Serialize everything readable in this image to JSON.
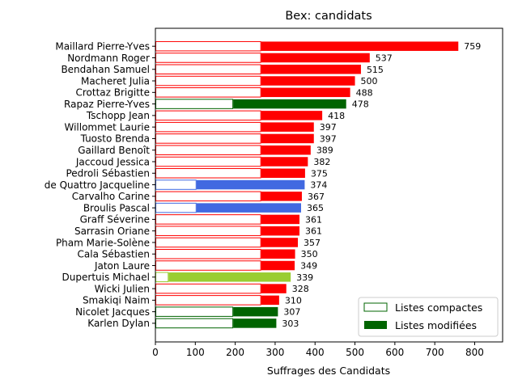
{
  "chart_data": {
    "type": "bar",
    "orientation": "horizontal",
    "title": "Bex: candidats",
    "xlabel": "Suffrages des Candidats",
    "ylabel": "",
    "xlim": [
      0,
      870
    ],
    "xticks": [
      0,
      100,
      200,
      300,
      400,
      500,
      600,
      700,
      800
    ],
    "grid": false,
    "legend_position": "lower-right",
    "legend": [
      {
        "label": "Listes compactes",
        "style": "outline",
        "color": "#006400"
      },
      {
        "label": "Listes modifiées",
        "style": "filled",
        "color": "#006400"
      }
    ],
    "categories": [
      "Maillard Pierre-Yves",
      "Nordmann Roger",
      "Bendahan Samuel",
      "Macheret Julia",
      "Crottaz Brigitte",
      "Rapaz Pierre-Yves",
      "Tschopp Jean",
      "Willommet Laurie",
      "Tuosto Brenda",
      "Gaillard Benoît",
      "Jaccoud Jessica",
      "Pedroli Sébastien",
      "de Quattro Jacqueline",
      "Carvalho Carine",
      "Broulis Pascal",
      "Graff Séverine",
      "Sarrasin Oriane",
      "Pham Marie-Solène",
      "Cala Sébastien",
      "Jaton Laure",
      "Dupertuis Michael",
      "Wicki Julien",
      "Smakiqi Naim",
      "Nicolet Jacques",
      "Karlen Dylan"
    ],
    "series": [
      {
        "name": "Listes compactes",
        "values": [
          265,
          265,
          265,
          265,
          265,
          195,
          265,
          265,
          265,
          265,
          265,
          265,
          103,
          265,
          103,
          265,
          265,
          265,
          265,
          265,
          33,
          265,
          265,
          195,
          195
        ]
      },
      {
        "name": "Listes modifiées",
        "values": [
          494,
          272,
          250,
          235,
          223,
          283,
          153,
          132,
          132,
          124,
          117,
          110,
          271,
          102,
          262,
          96,
          96,
          92,
          85,
          84,
          306,
          63,
          45,
          112,
          108
        ]
      }
    ],
    "totals": [
      759,
      537,
      515,
      500,
      488,
      478,
      418,
      397,
      397,
      389,
      382,
      375,
      374,
      367,
      365,
      361,
      361,
      357,
      350,
      349,
      339,
      328,
      310,
      307,
      303
    ],
    "bar_colors": [
      "#ff0000",
      "#ff0000",
      "#ff0000",
      "#ff0000",
      "#ff0000",
      "#006400",
      "#ff0000",
      "#ff0000",
      "#ff0000",
      "#ff0000",
      "#ff0000",
      "#ff0000",
      "#4169e1",
      "#ff0000",
      "#4169e1",
      "#ff0000",
      "#ff0000",
      "#ff0000",
      "#ff0000",
      "#ff0000",
      "#9acd32",
      "#ff0000",
      "#ff0000",
      "#006400",
      "#006400"
    ]
  }
}
